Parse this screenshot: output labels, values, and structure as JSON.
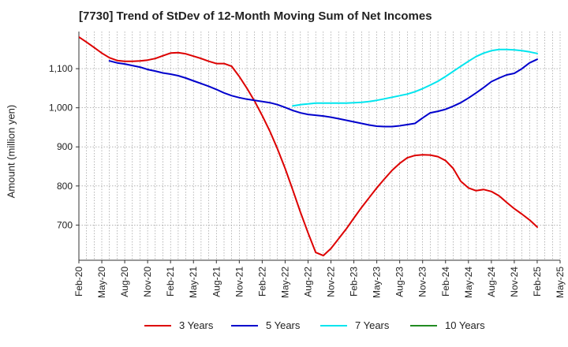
{
  "title": "[7730]  Trend of StDev of 12-Month Moving Sum of Net Incomes",
  "chart_data": {
    "type": "line",
    "title": "[7730]  Trend of StDev of 12-Month Moving Sum of Net Incomes",
    "xlabel": "",
    "ylabel": "Amount (million yen)",
    "ylim": [
      610,
      1195
    ],
    "yticks": [
      700,
      800,
      900,
      1000,
      1100
    ],
    "ytick_labels": [
      "700",
      "800",
      "900",
      "1,000",
      "1,100"
    ],
    "xlim": [
      "Feb-20",
      "May-25"
    ],
    "xtick_labels": [
      "Feb-20",
      "May-20",
      "Aug-20",
      "Nov-20",
      "Feb-21",
      "May-21",
      "Aug-21",
      "Nov-21",
      "Feb-22",
      "May-22",
      "Aug-22",
      "Nov-22",
      "Feb-23",
      "May-23",
      "Aug-23",
      "Nov-23",
      "Feb-24",
      "May-24",
      "Aug-24",
      "Nov-24",
      "Feb-25",
      "May-25"
    ],
    "grid": true,
    "legend_position": "bottom",
    "series": [
      {
        "name": "3 Years",
        "color": "#dd0000",
        "x": [
          "Feb-20",
          "Mar-20",
          "Apr-20",
          "May-20",
          "Jun-20",
          "Jul-20",
          "Aug-20",
          "Sep-20",
          "Oct-20",
          "Nov-20",
          "Dec-20",
          "Jan-21",
          "Feb-21",
          "Mar-21",
          "Apr-21",
          "May-21",
          "Jun-21",
          "Jul-21",
          "Aug-21",
          "Sep-21",
          "Oct-21",
          "Nov-21",
          "Dec-21",
          "Jan-22",
          "Feb-22",
          "Mar-22",
          "Apr-22",
          "May-22",
          "Jun-22",
          "Jul-22",
          "Aug-22",
          "Sep-22",
          "Oct-22",
          "Nov-22",
          "Dec-22",
          "Jan-23",
          "Feb-23",
          "Mar-23",
          "Apr-23",
          "May-23",
          "Jun-23",
          "Jul-23",
          "Aug-23",
          "Sep-23",
          "Oct-23",
          "Nov-23",
          "Dec-23",
          "Jan-24",
          "Feb-24",
          "Mar-24",
          "Apr-24",
          "May-24",
          "Jun-24",
          "Jul-24",
          "Aug-24",
          "Sep-24",
          "Oct-24",
          "Nov-24",
          "Dec-24",
          "Jan-25",
          "Feb-25"
        ],
        "values": [
          1181,
          1168,
          1154,
          1140,
          1128,
          1121,
          1119,
          1119,
          1120,
          1122,
          1126,
          1133,
          1140,
          1141,
          1138,
          1132,
          1126,
          1119,
          1113,
          1113,
          1106,
          1080,
          1050,
          1017,
          980,
          940,
          895,
          845,
          790,
          733,
          680,
          630,
          622,
          640,
          665,
          690,
          718,
          745,
          770,
          795,
          818,
          840,
          858,
          872,
          878,
          880,
          879,
          875,
          865,
          845,
          812,
          795,
          788,
          791,
          786,
          775,
          758,
          742,
          728,
          713,
          695
        ]
      },
      {
        "name": "5 Years",
        "color": "#0000cc",
        "x": [
          "Jun-20",
          "Jul-20",
          "Aug-20",
          "Sep-20",
          "Oct-20",
          "Nov-20",
          "Dec-20",
          "Jan-21",
          "Feb-21",
          "Mar-21",
          "Apr-21",
          "May-21",
          "Jun-21",
          "Jul-21",
          "Aug-21",
          "Sep-21",
          "Oct-21",
          "Nov-21",
          "Dec-21",
          "Jan-22",
          "Feb-22",
          "Mar-22",
          "Apr-22",
          "May-22",
          "Jun-22",
          "Jul-22",
          "Aug-22",
          "Sep-22",
          "Oct-22",
          "Nov-22",
          "Dec-22",
          "Jan-23",
          "Feb-23",
          "Mar-23",
          "Apr-23",
          "May-23",
          "Jun-23",
          "Jul-23",
          "Aug-23",
          "Sep-23",
          "Oct-23",
          "Nov-23",
          "Dec-23",
          "Jan-24",
          "Feb-24",
          "Mar-24",
          "Apr-24",
          "May-24",
          "Jun-24",
          "Jul-24",
          "Aug-24",
          "Sep-24",
          "Oct-24",
          "Nov-24",
          "Dec-24",
          "Jan-25",
          "Feb-25"
        ],
        "values": [
          1120,
          1115,
          1112,
          1108,
          1104,
          1098,
          1094,
          1089,
          1086,
          1082,
          1076,
          1069,
          1062,
          1055,
          1047,
          1038,
          1031,
          1026,
          1022,
          1019,
          1016,
          1013,
          1008,
          1001,
          993,
          987,
          983,
          981,
          979,
          976,
          972,
          968,
          964,
          960,
          956,
          953,
          952,
          952,
          954,
          957,
          960,
          974,
          987,
          991,
          996,
          1004,
          1013,
          1025,
          1038,
          1052,
          1067,
          1076,
          1084,
          1088,
          1100,
          1115,
          1124
        ]
      },
      {
        "name": "7 Years",
        "color": "#00e5ee",
        "x": [
          "Jun-22",
          "Jul-22",
          "Aug-22",
          "Sep-22",
          "Oct-22",
          "Nov-22",
          "Dec-22",
          "Jan-23",
          "Feb-23",
          "Mar-23",
          "Apr-23",
          "May-23",
          "Jun-23",
          "Jul-23",
          "Aug-23",
          "Sep-23",
          "Oct-23",
          "Nov-23",
          "Dec-23",
          "Jan-24",
          "Feb-24",
          "Mar-24",
          "Apr-24",
          "May-24",
          "Jun-24",
          "Jul-24",
          "Aug-24",
          "Sep-24",
          "Oct-24",
          "Nov-24",
          "Dec-24",
          "Jan-25",
          "Feb-25"
        ],
        "values": [
          1005,
          1008,
          1010,
          1012,
          1012,
          1012,
          1012,
          1012,
          1013,
          1014,
          1016,
          1019,
          1023,
          1027,
          1031,
          1035,
          1041,
          1049,
          1058,
          1068,
          1080,
          1093,
          1106,
          1119,
          1131,
          1140,
          1146,
          1149,
          1149,
          1148,
          1146,
          1143,
          1139
        ]
      },
      {
        "name": "10 Years",
        "color": "#228b22",
        "x": [],
        "values": []
      }
    ]
  }
}
